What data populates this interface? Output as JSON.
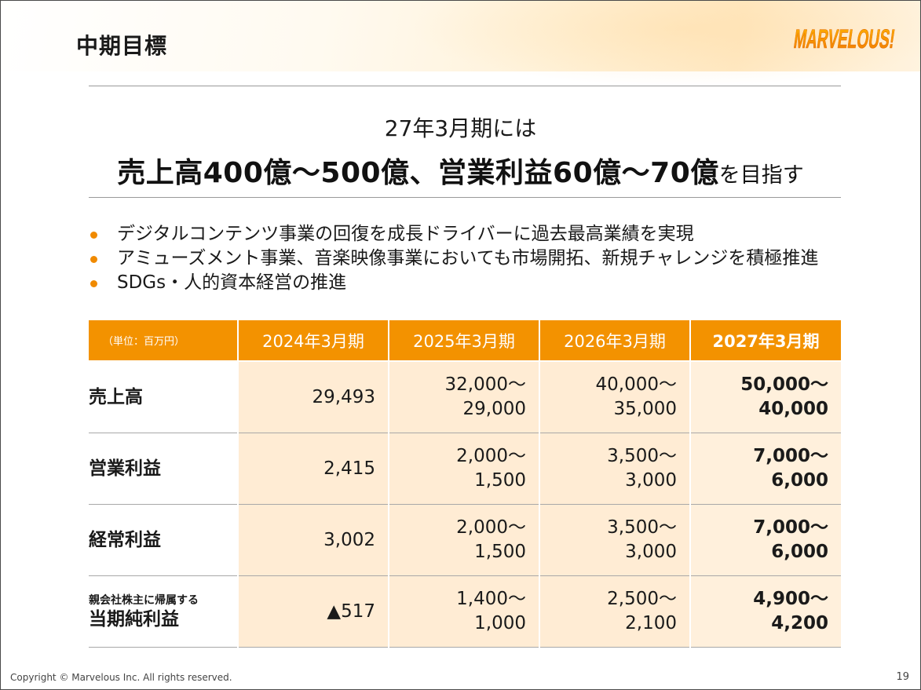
{
  "header": {
    "title": "中期目標",
    "logo_text": "MARVELOUS!"
  },
  "hero": {
    "subtitle": "27年3月期には",
    "headline_bold": "売上高400億～500億、営業利益60億～70億",
    "headline_suffix": "を目指す"
  },
  "bullets": [
    "デジタルコンテンツ事業の回復を成長ドライバーに過去最高業績を実現",
    "アミューズメント事業、音楽映像事業においても市場開拓、新規チャレンジを積極推進",
    "SDGs・人的資本経営の推進"
  ],
  "table": {
    "unit": "（単位：百万円）",
    "columns": [
      "2024年3月期",
      "2025年3月期",
      "2026年3月期",
      "2027年3月期"
    ],
    "rows": [
      {
        "label_sub": "",
        "label": "売上高",
        "values": [
          [
            "29,493"
          ],
          [
            "32,000～",
            "29,000"
          ],
          [
            "40,000～",
            "35,000"
          ],
          [
            "50,000～",
            "40,000"
          ]
        ]
      },
      {
        "label_sub": "",
        "label": "営業利益",
        "values": [
          [
            "2,415"
          ],
          [
            "2,000～",
            "1,500"
          ],
          [
            "3,500～",
            "3,000"
          ],
          [
            "7,000～",
            "6,000"
          ]
        ]
      },
      {
        "label_sub": "",
        "label": "経常利益",
        "values": [
          [
            "3,002"
          ],
          [
            "2,000～",
            "1,500"
          ],
          [
            "3,500～",
            "3,000"
          ],
          [
            "7,000～",
            "6,000"
          ]
        ]
      },
      {
        "label_sub": "親会社株主に帰属する",
        "label": "当期純利益",
        "values": [
          [
            "▲517"
          ],
          [
            "1,400～",
            "1,000"
          ],
          [
            "2,500～",
            "2,100"
          ],
          [
            "4,900～",
            "4,200"
          ]
        ]
      }
    ]
  },
  "footer": {
    "copyright": "Copyright © Marvelous Inc. All rights reserved.",
    "page_number": "19"
  },
  "colors": {
    "accent": "#f39200",
    "cell_fill": "#ffecd4",
    "bullet": "#f08a00"
  }
}
